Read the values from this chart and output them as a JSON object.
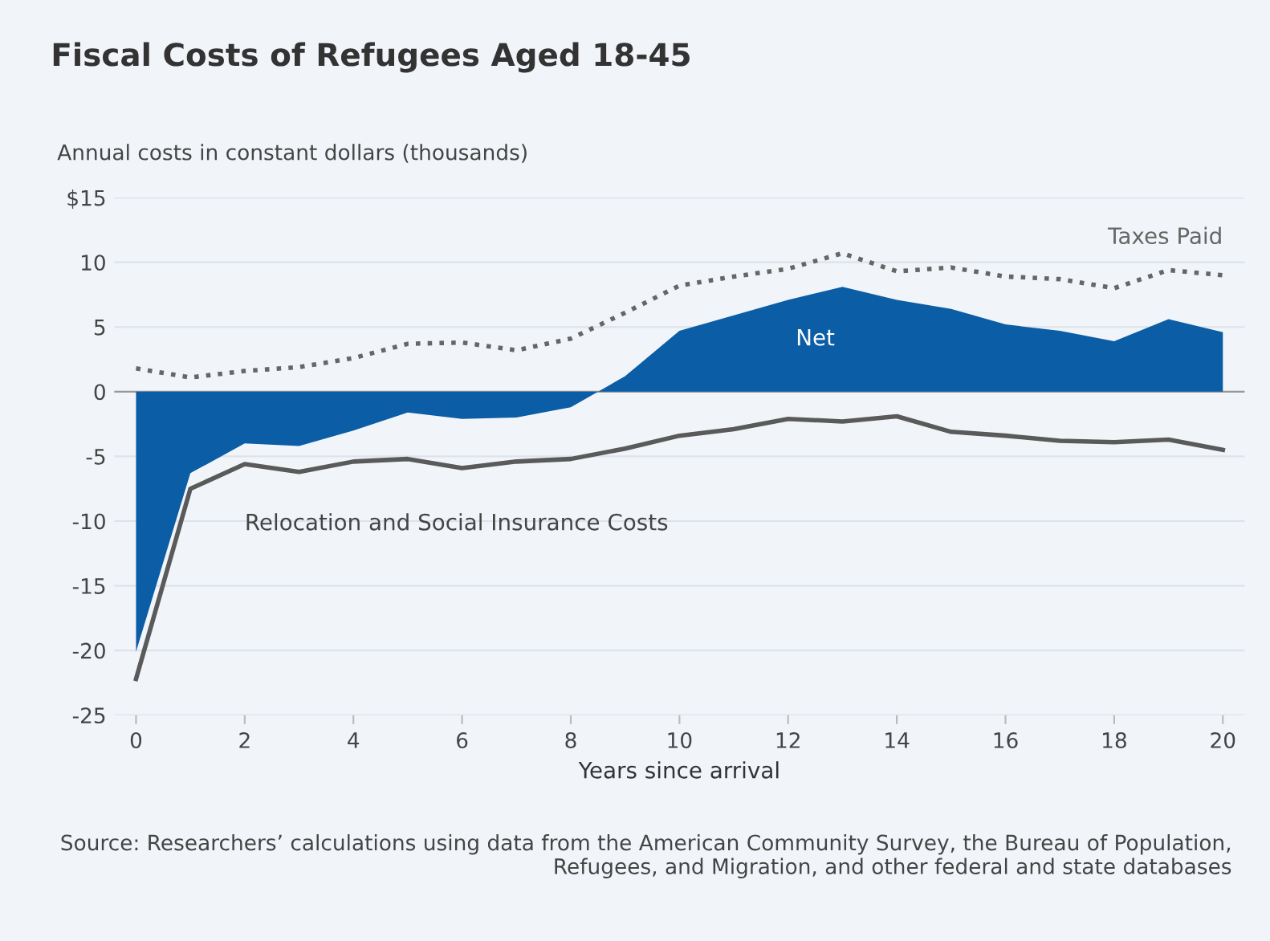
{
  "chart_data": {
    "type": "area",
    "title": "Fiscal Costs of Refugees Aged 18-45",
    "ylabel": "Annual costs in constant dollars (thousands)",
    "xlabel": "Years since arrival",
    "x": [
      0,
      1,
      2,
      3,
      4,
      5,
      6,
      7,
      8,
      9,
      10,
      11,
      12,
      13,
      14,
      15,
      16,
      17,
      18,
      19,
      20
    ],
    "series": [
      {
        "name": "Net",
        "color": "#0b5da6",
        "values": [
          -20.1,
          -6.3,
          -4.0,
          -4.2,
          -3.0,
          -1.6,
          -2.1,
          -2.0,
          -1.2,
          1.2,
          4.7,
          5.9,
          7.1,
          8.1,
          7.1,
          6.4,
          5.2,
          4.7,
          3.9,
          5.6,
          4.6
        ]
      },
      {
        "name": "Taxes Paid",
        "type": "line",
        "line_style": "dotted",
        "color": "#666666",
        "values": [
          1.8,
          1.1,
          1.6,
          1.9,
          2.6,
          3.7,
          3.8,
          3.2,
          4.1,
          6.1,
          8.2,
          8.9,
          9.5,
          10.7,
          9.3,
          9.6,
          8.9,
          8.7,
          8.0,
          9.4,
          9.0
        ]
      },
      {
        "name": "Relocation and Social Insurance Costs",
        "type": "line",
        "line_style": "solid",
        "color": "#5a5a5a",
        "values": [
          -22.2,
          -7.5,
          -5.6,
          -6.2,
          -5.4,
          -5.2,
          -5.9,
          -5.4,
          -5.2,
          -4.4,
          -3.4,
          -2.9,
          -2.1,
          -2.3,
          -1.9,
          -3.1,
          -3.4,
          -3.8,
          -3.9,
          -3.7,
          -4.5
        ]
      }
    ],
    "xlim": [
      -0.4,
      20.4
    ],
    "xticks": [
      0,
      2,
      4,
      6,
      8,
      10,
      12,
      14,
      16,
      18,
      20
    ],
    "ylim": [
      -25,
      15
    ],
    "yticks": [
      {
        "value": 15,
        "label": "$15"
      },
      10,
      5,
      0,
      -5,
      -10,
      -15,
      -20,
      -25
    ],
    "grid": "y",
    "annotations": [
      "Source: Researchers’ calculations using data from the American Community Survey, the Bureau of Population, Refugees, and Migration, and other federal and state databases"
    ]
  }
}
